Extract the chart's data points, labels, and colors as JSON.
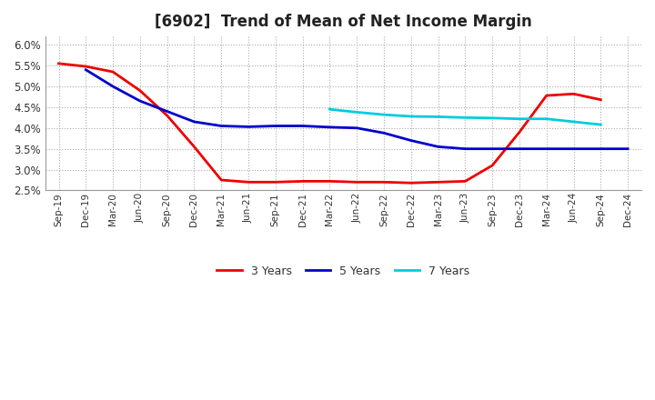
{
  "title": "[6902]  Trend of Mean of Net Income Margin",
  "background_color": "#ffffff",
  "plot_bg_color": "#ffffff",
  "grid_color": "#aaaaaa",
  "ylim": [
    0.025,
    0.062
  ],
  "yticks": [
    0.025,
    0.03,
    0.035,
    0.04,
    0.045,
    0.05,
    0.055,
    0.06
  ],
  "x_labels": [
    "Sep-19",
    "Dec-19",
    "Mar-20",
    "Jun-20",
    "Sep-20",
    "Dec-20",
    "Mar-21",
    "Jun-21",
    "Sep-21",
    "Dec-21",
    "Mar-22",
    "Jun-22",
    "Sep-22",
    "Dec-22",
    "Mar-23",
    "Jun-23",
    "Sep-23",
    "Dec-23",
    "Mar-24",
    "Jun-24",
    "Sep-24",
    "Dec-24"
  ],
  "series_3y": {
    "label": "3 Years",
    "color": "#ee0000",
    "data": [
      0.0555,
      0.0548,
      0.0535,
      0.049,
      0.043,
      0.0355,
      0.0275,
      0.027,
      0.027,
      0.0272,
      0.0272,
      0.027,
      0.027,
      0.0268,
      0.027,
      0.0272,
      0.031,
      0.039,
      0.0478,
      0.0482,
      0.0468,
      null
    ]
  },
  "series_5y": {
    "label": "5 Years",
    "color": "#0000cc",
    "data": [
      null,
      0.054,
      0.05,
      0.0465,
      0.044,
      0.0415,
      0.0405,
      0.0403,
      0.0405,
      0.0405,
      0.0402,
      0.04,
      0.0388,
      0.037,
      0.0355,
      0.035,
      0.035,
      0.035,
      0.035,
      0.035,
      0.035,
      0.035
    ]
  },
  "series_7y": {
    "label": "7 Years",
    "color": "#00ccdd",
    "data": [
      null,
      null,
      null,
      null,
      null,
      null,
      null,
      null,
      null,
      null,
      0.0445,
      0.0438,
      0.0432,
      0.0428,
      0.0427,
      0.0425,
      0.0424,
      0.0422,
      0.0422,
      0.0415,
      0.0408,
      null
    ]
  },
  "series_10y": {
    "color": "#228822",
    "data": [
      null,
      null,
      null,
      null,
      null,
      null,
      null,
      null,
      null,
      null,
      null,
      null,
      null,
      null,
      null,
      null,
      null,
      null,
      null,
      null,
      null,
      null
    ]
  },
  "title_fontsize": 12,
  "line_width": 2.0
}
